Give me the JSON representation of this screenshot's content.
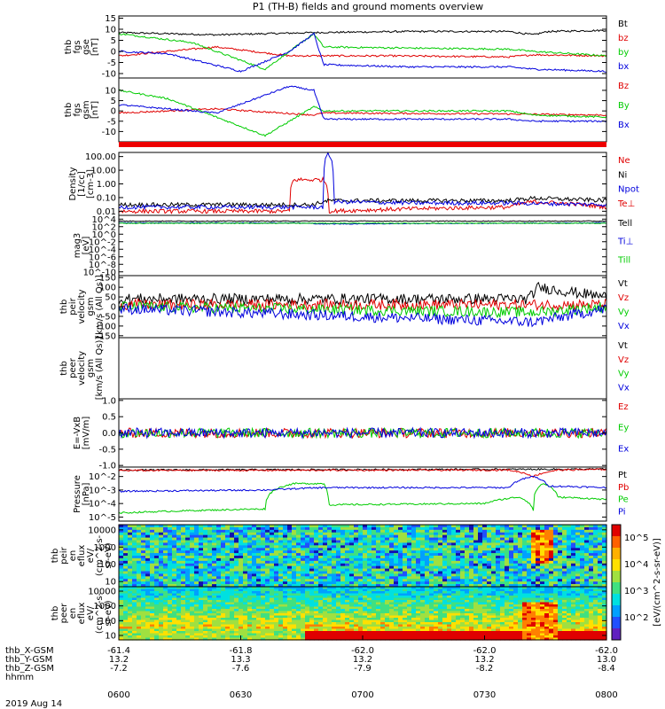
{
  "title": "P1 (TH-B) fields and ground moments overview",
  "date": "2019 Aug 14",
  "time_ticks": [
    "0600",
    "0630",
    "0700",
    "0730",
    "0800"
  ],
  "ephem": {
    "labels": [
      "thb_X-GSM",
      "thb_Y-GSM",
      "thb_Z-GSM",
      "hhmm"
    ],
    "rows": [
      [
        "-61.4",
        "-61.8",
        "-62.0",
        "-62.0",
        "-62.0"
      ],
      [
        "13.2",
        "13.3",
        "13.2",
        "13.2",
        "13.0"
      ],
      [
        "-7.2",
        "-7.6",
        "-7.9",
        "-8.2",
        "-8.4"
      ]
    ]
  },
  "colorbar": {
    "ticks": [
      "10^5",
      "10^4",
      "10^3",
      "10^2"
    ],
    "label": "[eV/(cm^2-s-sr-eV)]"
  },
  "chart_data": [
    {
      "type": "line",
      "panel": "fgs_gse",
      "ylabel": [
        "thb",
        "fgs",
        "gse",
        "[nT]"
      ],
      "yticks": [
        "15",
        "10",
        "5",
        "0",
        "-5",
        "-10"
      ],
      "ylim": [
        -12,
        16
      ],
      "series": [
        {
          "name": "Bt",
          "color": "#000000",
          "x": [
            0,
            0.1,
            0.2,
            0.3,
            0.4,
            0.6,
            0.8,
            0.85,
            0.88,
            1.0
          ],
          "y": [
            8.5,
            8,
            7.5,
            8,
            8.5,
            9,
            9,
            7.5,
            9,
            9.5
          ]
        },
        {
          "name": "bz",
          "color": "#e00000",
          "x": [
            0,
            0.2,
            0.35,
            0.55,
            0.8,
            0.85,
            1.0
          ],
          "y": [
            -2,
            2,
            -2,
            -2,
            -2.5,
            -1.5,
            -2
          ]
        },
        {
          "name": "by",
          "color": "#00cc00",
          "x": [
            0,
            0.15,
            0.3,
            0.4,
            0.42,
            0.6,
            0.8,
            0.85,
            1.0
          ],
          "y": [
            8,
            4,
            -8,
            8,
            2,
            1.5,
            1,
            0,
            -2
          ]
        },
        {
          "name": "bx",
          "color": "#0000dd",
          "x": [
            0,
            0.1,
            0.25,
            0.35,
            0.4,
            0.42,
            0.6,
            0.8,
            0.85,
            1.0
          ],
          "y": [
            0,
            -1,
            -9,
            0,
            8,
            -6,
            -7,
            -7,
            -8,
            -9
          ]
        }
      ]
    },
    {
      "type": "line",
      "panel": "fgs_gsm",
      "ylabel": [
        "thb",
        "fgs",
        "gsm",
        "[nT]"
      ],
      "yticks": [
        "10",
        "5",
        "0",
        "-5",
        "-10"
      ],
      "ylim": [
        -15,
        16
      ],
      "series": [
        {
          "name": "Bz",
          "color": "#e00000",
          "x": [
            0,
            0.2,
            0.4,
            0.42,
            0.8,
            1.0
          ],
          "y": [
            -1,
            1,
            -2,
            -1,
            -1.5,
            -2
          ]
        },
        {
          "name": "By",
          "color": "#00cc00",
          "x": [
            0,
            0.1,
            0.3,
            0.4,
            0.42,
            0.8,
            0.85,
            1.0
          ],
          "y": [
            10,
            6,
            -12,
            2,
            0,
            0,
            -2,
            -3
          ]
        },
        {
          "name": "Bx",
          "color": "#0000dd",
          "x": [
            0,
            0.2,
            0.35,
            0.4,
            0.42,
            0.8,
            0.85,
            1.0
          ],
          "y": [
            3,
            -1,
            12,
            10,
            -4,
            -4,
            -5,
            -5
          ]
        }
      ]
    },
    {
      "type": "line",
      "panel": "density",
      "ylabel": [
        "Density",
        "[1/cc]",
        "[cm-3]"
      ],
      "yticks": [
        "100.00",
        "10.00",
        "1.00",
        "0.10",
        "0.01"
      ],
      "ylim": [
        0.005,
        200
      ],
      "scale": "log",
      "series": [
        {
          "name": "Ne",
          "color": "#e00000",
          "x": [
            0,
            0.3,
            0.35,
            0.36,
            0.42,
            0.43,
            0.6,
            0.8,
            0.85,
            1.0
          ],
          "y": [
            0.01,
            0.01,
            0.01,
            2,
            2,
            0.01,
            0.015,
            0.02,
            0.05,
            0.02
          ]
        },
        {
          "name": "Ni",
          "color": "#000000",
          "x": [
            0,
            0.4,
            0.43,
            0.8,
            0.85,
            1.0
          ],
          "y": [
            0.03,
            0.03,
            0.06,
            0.06,
            0.09,
            0.06
          ]
        },
        {
          "name": "Npot",
          "color": "#0000dd",
          "x": [
            0,
            0.42,
            0.43,
            0.44,
            0.6,
            0.8,
            1.0
          ],
          "y": [
            0.02,
            0.02,
            150,
            0.05,
            0.04,
            0.04,
            0.03
          ]
        },
        {
          "name": "Te⊥",
          "color": "#e00000",
          "x": [],
          "y": []
        }
      ]
    },
    {
      "type": "line",
      "panel": "temperature",
      "ylabel": [
        "mag3",
        "[eV]"
      ],
      "yticks": [
        "10^4",
        "10^2",
        "10^0",
        "10^-2",
        "10^-4",
        "10^-6",
        "10^-8",
        "10^-10"
      ],
      "ylim": [
        1e-11,
        100000.0
      ],
      "scale": "log",
      "series": [
        {
          "name": "Tell",
          "color": "#000000",
          "x": [
            0,
            1.0
          ],
          "y": [
            3000,
            3000
          ]
        },
        {
          "name": "Ti⊥",
          "color": "#0000dd",
          "x": [
            0,
            0.36,
            0.42,
            1.0
          ],
          "y": [
            1000,
            1000,
            500,
            1000
          ]
        },
        {
          "name": "Till",
          "color": "#00cc00",
          "x": [
            0,
            1.0
          ],
          "y": [
            800,
            800
          ]
        }
      ]
    },
    {
      "type": "line",
      "panel": "peir_velocity",
      "ylabel": [
        "thb",
        "peir",
        "velocity",
        "gsm",
        "[km/s (All Qs)]"
      ],
      "yticks": [
        "150",
        "100",
        "50",
        "0",
        "-50",
        "-100",
        "-150"
      ],
      "ylim": [
        -160,
        160
      ],
      "series": [
        {
          "name": "Vt",
          "color": "#000000",
          "x": [
            0,
            0.84,
            0.86,
            1.0
          ],
          "y": [
            40,
            40,
            100,
            50
          ]
        },
        {
          "name": "Vz",
          "color": "#e00000",
          "x": [
            0,
            1.0
          ],
          "y": [
            10,
            10
          ]
        },
        {
          "name": "Vy",
          "color": "#00cc00",
          "x": [
            0,
            0.85,
            1.0
          ],
          "y": [
            0,
            -30,
            0
          ]
        },
        {
          "name": "Vx",
          "color": "#0000dd",
          "x": [
            0,
            0.85,
            1.0
          ],
          "y": [
            -10,
            -80,
            -10
          ]
        }
      ]
    },
    {
      "type": "line",
      "panel": "peer_velocity",
      "ylabel": [
        "thb",
        "peer",
        "velocity",
        "gsm",
        "[km/s (All Qs)]"
      ],
      "yticks": [],
      "series": [
        {
          "name": "Vt",
          "color": "#000000",
          "x": [],
          "y": []
        },
        {
          "name": "Vz",
          "color": "#e00000",
          "x": [],
          "y": []
        },
        {
          "name": "Vy",
          "color": "#00cc00",
          "x": [],
          "y": []
        },
        {
          "name": "Vx",
          "color": "#0000dd",
          "x": [],
          "y": []
        }
      ]
    },
    {
      "type": "line",
      "panel": "efield",
      "ylabel": [
        "E=-VxB",
        "[mV/m]"
      ],
      "yticks": [
        "1.0",
        "0.5",
        "0.0",
        "-0.5",
        "-1.0"
      ],
      "ylim": [
        -1.05,
        1.05
      ],
      "series": [
        {
          "name": "Ez",
          "color": "#e00000",
          "x": [
            0,
            1.0
          ],
          "y": [
            0,
            0
          ]
        },
        {
          "name": "Ey",
          "color": "#00cc00",
          "x": [
            0,
            1.0
          ],
          "y": [
            0,
            0
          ]
        },
        {
          "name": "Ex",
          "color": "#0000dd",
          "x": [
            0,
            1.0
          ],
          "y": [
            0,
            0
          ]
        }
      ]
    },
    {
      "type": "line",
      "panel": "pressure",
      "ylabel": [
        "Pressure",
        "[nPa]"
      ],
      "yticks": [
        "10^-2",
        "10^-3",
        "10^-4",
        "10^-5"
      ],
      "ylim": [
        5e-06,
        0.05
      ],
      "scale": "log",
      "series": [
        {
          "name": "Pt",
          "color": "#000000",
          "x": [
            0,
            1.0
          ],
          "y": [
            0.03,
            0.035
          ]
        },
        {
          "name": "Pb",
          "color": "#e00000",
          "x": [
            0,
            0.8,
            0.85,
            0.9,
            1.0
          ],
          "y": [
            0.028,
            0.03,
            0.01,
            0.03,
            0.034
          ]
        },
        {
          "name": "Pe",
          "color": "#00cc00",
          "x": [
            0,
            0.3,
            0.36,
            0.42,
            0.43,
            0.75,
            0.82,
            0.85,
            0.87,
            0.9,
            1.0
          ],
          "y": [
            2e-05,
            4e-05,
            0.003,
            0.003,
            8e-05,
            0.0001,
            0.0003,
            3e-05,
            0.003,
            0.0003,
            0.0002
          ]
        },
        {
          "name": "Pi",
          "color": "#0000dd",
          "x": [
            0,
            0.3,
            0.42,
            0.8,
            0.85,
            0.88,
            1.0
          ],
          "y": [
            0.0008,
            0.001,
            0.0015,
            0.0015,
            0.01,
            0.002,
            0.0015
          ]
        }
      ]
    },
    {
      "type": "heatmap",
      "panel": "peir_eflux",
      "ylabel": [
        "thb",
        "peir",
        "en",
        "eflux",
        "eV/",
        "(cm^2-s-",
        "sr-eV)"
      ],
      "yticks": [
        "10000",
        "1000",
        "100",
        "10"
      ],
      "ylim": [
        5,
        20000
      ],
      "scale": "log"
    },
    {
      "type": "heatmap",
      "panel": "peer_eflux",
      "ylabel": [
        "thb",
        "peer",
        "en",
        "eflux",
        "eV/",
        "(cm^2-s-",
        "sr-eV)"
      ],
      "yticks": [
        "10000",
        "1000",
        "100",
        "10"
      ],
      "ylim": [
        5,
        20000
      ],
      "scale": "log"
    }
  ]
}
